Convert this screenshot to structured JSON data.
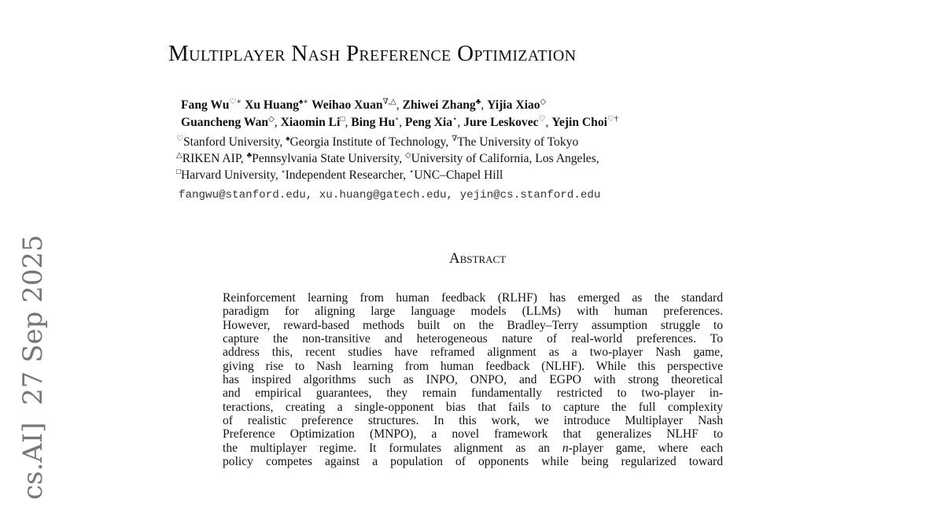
{
  "title": "Multiplayer Nash Preference Optimization",
  "authors_lines": [
    [
      {
        "name": "Fang Wu",
        "mark": "♡∗"
      },
      {
        "name": "Xu Huang",
        "mark": "♠∗"
      },
      {
        "name": "Weihao Xuan",
        "mark": "∇,△"
      },
      {
        "name": "Zhiwei Zhang",
        "mark": "♣"
      },
      {
        "name": "Yijia Xiao",
        "mark": "◇"
      }
    ],
    [
      {
        "name": "Guancheng Wan",
        "mark": "◇"
      },
      {
        "name": "Xiaomin Li",
        "mark": "□"
      },
      {
        "name": "Bing Hu",
        "mark": "∘"
      },
      {
        "name": "Peng Xia",
        "mark": "⋆"
      },
      {
        "name": "Jure Leskovec",
        "mark": "♡"
      },
      {
        "name": "Yejin Choi",
        "mark": "♡†"
      }
    ]
  ],
  "affiliation_lines": [
    [
      {
        "mark": "♡",
        "name": "Stanford University,"
      },
      {
        "mark": "♠",
        "name": "Georgia Institute of Technology,"
      },
      {
        "mark": "∇",
        "name": "The University of Tokyo"
      }
    ],
    [
      {
        "mark": "△",
        "name": "RIKEN AIP,"
      },
      {
        "mark": "♣",
        "name": "Pennsylvania State University,"
      },
      {
        "mark": "◇",
        "name": "University of California, Los Angeles,"
      }
    ],
    [
      {
        "mark": "□",
        "name": "Harvard University,"
      },
      {
        "mark": "∘",
        "name": "Independent Researcher,"
      },
      {
        "mark": "⋆",
        "name": "UNC–Chapel Hill"
      }
    ]
  ],
  "emails": "fangwu@stanford.edu, xu.huang@gatech.edu, yejin@cs.stanford.edu",
  "arxiv_stamp": "cs.AI]  27 Sep 2025",
  "abstract_heading": "Abstract",
  "abstract_lines": [
    "Reinforcement learning from human feedback (RLHF) has emerged as the standard",
    "paradigm for aligning large language models (LLMs) with human preferences.",
    "However, reward-based methods built on the Bradley–Terry assumption struggle to",
    "capture the non-transitive and heterogeneous nature of real-world preferences. To",
    "address this, recent studies have reframed alignment as a two-player Nash game,",
    "giving rise to Nash learning from human feedback (NLHF). While this perspective",
    "has inspired algorithms such as INPO, ONPO, and EGPO with strong theoretical",
    "and empirical guarantees, they remain fundamentally restricted to two-player in-",
    "teractions, creating a single-opponent bias that fails to capture the full complexity",
    "of realistic preference structures.  In this work, we introduce Multiplayer Nash",
    "Preference Optimization (MNPO), a novel framework that generalizes NLHF to",
    "the multiplayer regime. It formulates alignment as an n-player game, where each",
    "policy competes against a population of opponents while being regularized toward"
  ]
}
